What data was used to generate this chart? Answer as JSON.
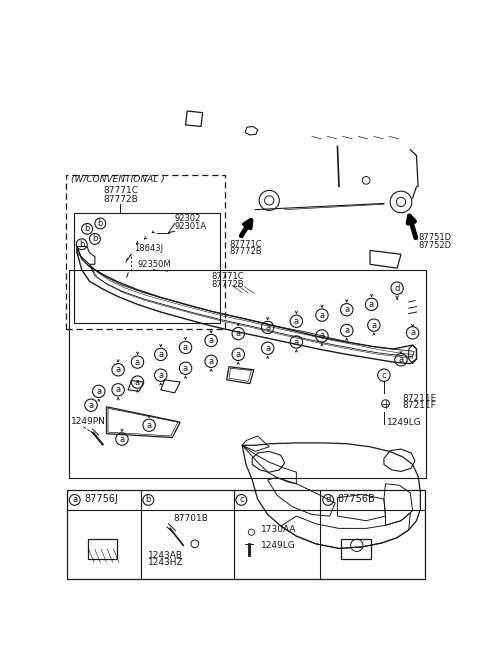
{
  "bg_color": "#ffffff",
  "line_color": "#1a1a1a",
  "fig_width": 4.8,
  "fig_height": 6.56,
  "dpi": 100,
  "car_label_left": [
    "87771C",
    "87772B"
  ],
  "car_label_right": [
    "87751D",
    "87752D"
  ],
  "conv_title": "(W/CONVENTIONAL )",
  "conv_parts": [
    "87771C",
    "87772B"
  ],
  "inner_labels": [
    "92302",
    "92301A",
    "18643J",
    "92350M"
  ],
  "strip_label_left": [
    "87771C",
    "87772B"
  ],
  "strip_label_right": [
    "87751D",
    "87752D"
  ],
  "right_labels": [
    "87211E",
    "87211F",
    "1249LG"
  ],
  "bottom_labels": [
    "1249PN"
  ],
  "table_col_a": "87756J",
  "table_col_b1": "87701B",
  "table_col_b2": [
    "1243AB",
    "1243HZ"
  ],
  "table_col_c": [
    "1730AA",
    "1249LG"
  ],
  "table_col_d": "87756B"
}
